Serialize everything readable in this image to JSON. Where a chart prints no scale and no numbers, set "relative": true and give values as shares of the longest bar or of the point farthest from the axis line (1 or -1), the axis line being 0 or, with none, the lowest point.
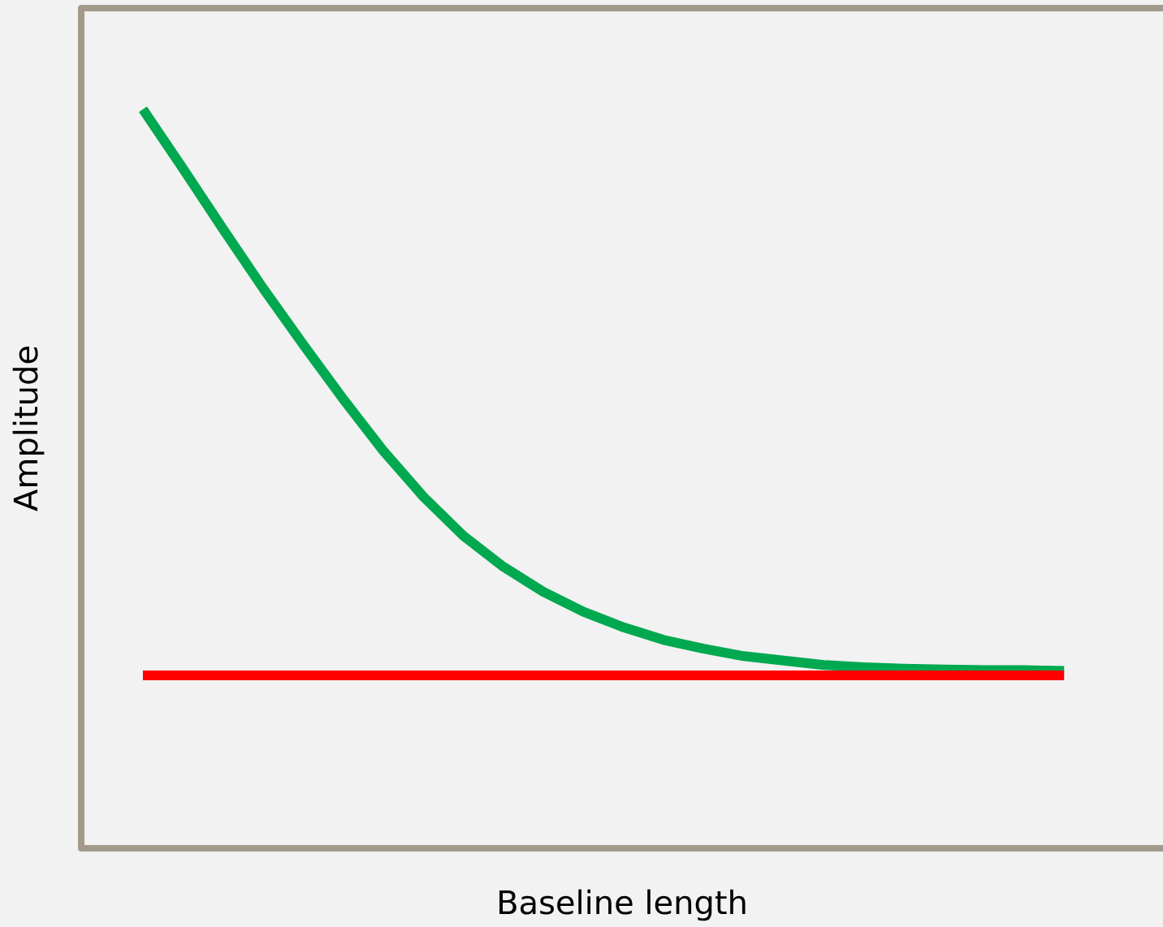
{
  "chart_data": {
    "type": "line",
    "relative": true,
    "xlabel": "Baseline length",
    "ylabel": "Amplitude",
    "line_style": "solid",
    "categories": [
      null,
      null,
      null,
      null,
      null,
      null,
      null,
      null,
      null,
      null,
      null,
      null,
      null,
      null,
      null,
      null,
      null,
      null,
      null,
      null,
      null,
      null,
      null,
      null
    ],
    "series": [
      {
        "color": "#00a84f",
        "values": [
          1.0,
          0.92,
          0.838,
          0.758,
          0.682,
          0.608,
          0.538,
          0.476,
          0.423,
          0.381,
          0.347,
          0.32,
          0.299,
          0.282,
          0.27,
          0.26,
          0.254,
          0.248,
          0.245,
          0.243,
          0.242,
          0.241,
          0.241,
          0.24
        ]
      },
      {
        "color": "#ff0000",
        "values": [
          0.234,
          0.234,
          0.234,
          0.234,
          0.234,
          0.234,
          0.234,
          0.234,
          0.234,
          0.234,
          0.234,
          0.234,
          0.234,
          0.234,
          0.234,
          0.234,
          0.234,
          0.234,
          0.234,
          0.234,
          0.234,
          0.234,
          0.234,
          0.234
        ]
      }
    ]
  }
}
